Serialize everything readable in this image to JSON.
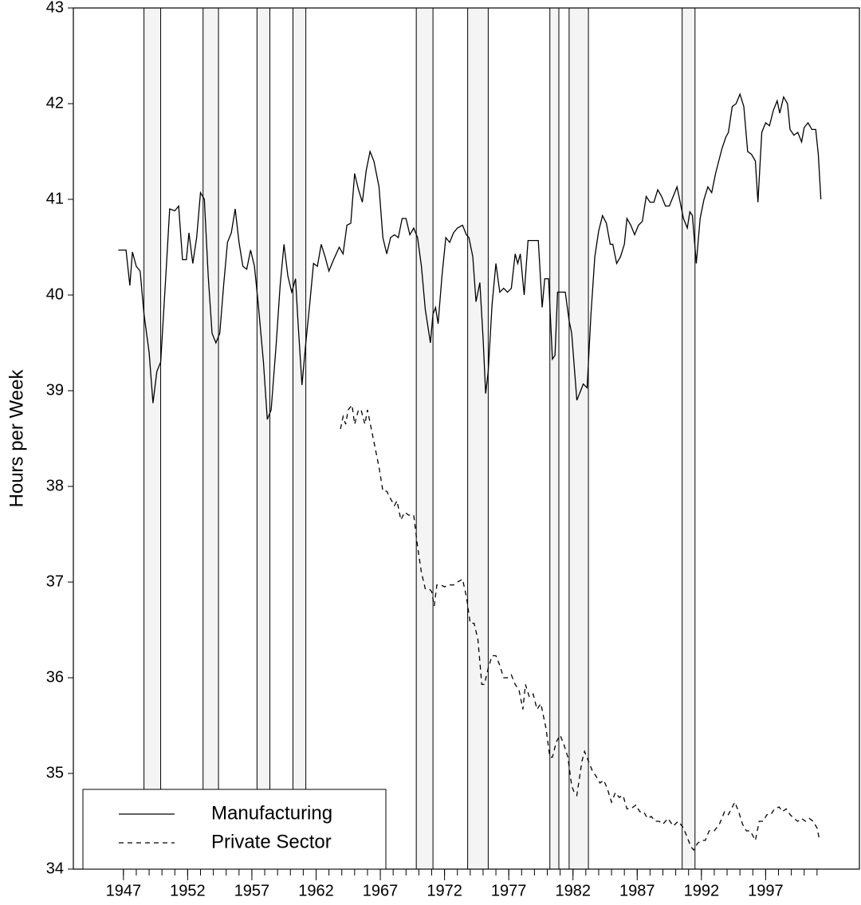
{
  "chart_data": {
    "type": "line",
    "ylabel": "Hours per Week",
    "xlim": [
      1943.1,
      2004.3
    ],
    "ylim": [
      34,
      43
    ],
    "yticks": [
      34,
      35,
      36,
      37,
      38,
      39,
      40,
      41,
      42,
      43
    ],
    "xticks": [
      1947,
      1952,
      1957,
      1962,
      1967,
      1972,
      1977,
      1982,
      1987,
      1992,
      1997
    ],
    "xminorticks": [
      1947,
      1948,
      1949,
      1950,
      1951,
      1952,
      1953,
      1954,
      1955,
      1956,
      1957,
      1958,
      1959,
      1960,
      1961,
      1962,
      1963,
      1964,
      1965,
      1966,
      1967,
      1968,
      1969,
      1970,
      1971,
      1972,
      1973,
      1974,
      1975,
      1976,
      1977,
      1978,
      1979,
      1980,
      1981,
      1982,
      1983,
      1984,
      1985,
      1986,
      1987,
      1988,
      1989,
      1990,
      1991,
      1992,
      1993,
      1994,
      1995,
      1996,
      1997,
      1998,
      1999,
      2000,
      2001
    ],
    "recessions": [
      [
        1948.6,
        1949.9
      ],
      [
        1953.2,
        1954.4
      ],
      [
        1957.4,
        1958.4
      ],
      [
        1960.2,
        1961.2
      ],
      [
        1969.8,
        1971.1
      ],
      [
        1973.8,
        1975.4
      ],
      [
        1980.2,
        1980.9
      ],
      [
        1981.7,
        1983.2
      ],
      [
        1990.5,
        1991.5
      ]
    ],
    "legend": "lower left",
    "series": [
      {
        "name": "Manufacturing",
        "color": "#000000",
        "dash": "solid",
        "x": [
          1946.6,
          1947.2,
          1947.5,
          1947.7,
          1948.0,
          1948.3,
          1948.6,
          1949.0,
          1949.3,
          1949.6,
          1949.9,
          1950.3,
          1950.6,
          1951.0,
          1951.3,
          1951.6,
          1951.9,
          1952.1,
          1952.4,
          1952.7,
          1953.0,
          1953.3,
          1953.6,
          1953.9,
          1954.2,
          1954.5,
          1954.8,
          1955.1,
          1955.4,
          1955.7,
          1956.0,
          1956.3,
          1956.6,
          1956.9,
          1957.2,
          1957.5,
          1957.9,
          1958.2,
          1958.5,
          1958.9,
          1959.2,
          1959.5,
          1959.8,
          1960.1,
          1960.4,
          1960.6,
          1960.9,
          1961.2,
          1961.5,
          1961.8,
          1962.1,
          1962.4,
          1962.7,
          1963.0,
          1963.3,
          1963.8,
          1964.1,
          1964.4,
          1964.7,
          1965.0,
          1965.3,
          1965.6,
          1965.9,
          1966.2,
          1966.5,
          1966.9,
          1967.2,
          1967.5,
          1967.8,
          1968.1,
          1968.4,
          1968.7,
          1969.0,
          1969.3,
          1969.6,
          1969.9,
          1970.2,
          1970.5,
          1970.9,
          1971.1,
          1971.3,
          1971.5,
          1971.8,
          1972.1,
          1972.4,
          1972.7,
          1973.0,
          1973.4,
          1973.7,
          1973.9,
          1974.2,
          1974.45,
          1974.75,
          1975.0,
          1975.2,
          1975.4,
          1975.7,
          1976.0,
          1976.3,
          1976.6,
          1976.9,
          1977.2,
          1977.5,
          1977.7,
          1977.9,
          1978.2,
          1978.5,
          1978.9,
          1979.3,
          1979.6,
          1979.8,
          1980.1,
          1980.4,
          1980.6,
          1980.8,
          1981.4,
          1981.7,
          1981.9,
          1982.3,
          1982.6,
          1982.8,
          1983.1,
          1983.4,
          1983.7,
          1984.0,
          1984.3,
          1984.6,
          1984.9,
          1985.1,
          1985.4,
          1985.7,
          1986.0,
          1986.2,
          1986.5,
          1986.8,
          1987.1,
          1987.4,
          1987.7,
          1988.0,
          1988.3,
          1988.6,
          1988.9,
          1989.2,
          1989.5,
          1989.8,
          1990.1,
          1990.3,
          1990.6,
          1990.9,
          1991.1,
          1991.3,
          1991.6,
          1991.9,
          1992.2,
          1992.5,
          1992.8,
          1993.1,
          1993.6,
          1993.9,
          1994.1,
          1994.4,
          1994.7,
          1995.0,
          1995.3,
          1995.6,
          1995.9,
          1996.2,
          1996.4,
          1996.7,
          1997.0,
          1997.3,
          1997.6,
          1997.9,
          1998.1,
          1998.4,
          1998.7,
          1998.9,
          1999.2,
          1999.5,
          1999.8,
          2000.0,
          2000.3,
          2000.6,
          2000.9,
          2001.1,
          2001.3
        ],
        "values": [
          40.47,
          40.47,
          40.1,
          40.45,
          40.3,
          40.25,
          39.8,
          39.4,
          38.87,
          39.2,
          39.3,
          40.2,
          40.9,
          40.88,
          40.93,
          40.37,
          40.37,
          40.65,
          40.33,
          40.6,
          41.07,
          41.0,
          40.2,
          39.6,
          39.5,
          39.6,
          40.1,
          40.55,
          40.65,
          40.9,
          40.55,
          40.3,
          40.27,
          40.47,
          40.3,
          39.9,
          39.3,
          38.7,
          38.8,
          39.5,
          40.1,
          40.53,
          40.2,
          40.03,
          40.17,
          39.7,
          39.06,
          39.5,
          39.9,
          40.33,
          40.3,
          40.53,
          40.4,
          40.25,
          40.35,
          40.5,
          40.43,
          40.73,
          40.75,
          41.27,
          41.1,
          40.97,
          41.3,
          41.5,
          41.4,
          41.13,
          40.6,
          40.43,
          40.6,
          40.63,
          40.6,
          40.8,
          40.8,
          40.63,
          40.7,
          40.6,
          40.3,
          39.85,
          39.5,
          39.8,
          39.87,
          39.7,
          40.2,
          40.6,
          40.55,
          40.65,
          40.7,
          40.73,
          40.63,
          40.6,
          40.4,
          39.93,
          40.13,
          39.55,
          38.97,
          39.2,
          39.9,
          40.33,
          40.03,
          40.07,
          40.03,
          40.07,
          40.43,
          40.33,
          40.43,
          40.0,
          40.57,
          40.57,
          40.57,
          39.87,
          40.17,
          40.17,
          39.33,
          39.37,
          40.03,
          40.03,
          39.73,
          39.6,
          38.9,
          39.0,
          39.07,
          39.03,
          39.8,
          40.4,
          40.67,
          40.83,
          40.75,
          40.53,
          40.53,
          40.33,
          40.4,
          40.53,
          40.8,
          40.73,
          40.63,
          40.73,
          40.77,
          41.03,
          40.97,
          40.97,
          41.1,
          41.03,
          40.93,
          40.93,
          41.03,
          41.13,
          41.0,
          40.8,
          40.7,
          40.87,
          40.83,
          40.33,
          40.8,
          41.0,
          41.13,
          41.07,
          41.27,
          41.53,
          41.65,
          41.7,
          41.97,
          42.0,
          42.1,
          41.97,
          41.5,
          41.47,
          41.4,
          40.97,
          41.7,
          41.8,
          41.77,
          41.93,
          42.03,
          41.9,
          42.07,
          42.0,
          41.73,
          41.67,
          41.7,
          41.6,
          41.75,
          41.8,
          41.73,
          41.73,
          41.47,
          41.0
        ]
      },
      {
        "name": "Private Sector",
        "color": "#000000",
        "dash": "dashed",
        "x": [
          1963.9,
          1964.1,
          1964.3,
          1964.5,
          1964.8,
          1965.0,
          1965.3,
          1965.5,
          1965.8,
          1966.0,
          1966.3,
          1966.6,
          1966.9,
          1967.2,
          1967.5,
          1967.8,
          1968.1,
          1968.3,
          1968.6,
          1968.9,
          1969.2,
          1969.6,
          1969.9,
          1970.2,
          1970.5,
          1970.8,
          1971.0,
          1971.2,
          1971.4,
          1971.7,
          1972.0,
          1972.3,
          1972.7,
          1973.0,
          1973.4,
          1973.7,
          1974.0,
          1974.3,
          1974.6,
          1974.9,
          1975.1,
          1975.4,
          1975.7,
          1976.0,
          1976.3,
          1976.6,
          1976.9,
          1977.2,
          1977.5,
          1977.8,
          1978.1,
          1978.3,
          1978.6,
          1978.9,
          1979.2,
          1979.5,
          1979.7,
          1979.9,
          1980.2,
          1980.4,
          1980.7,
          1981.0,
          1981.3,
          1981.6,
          1981.9,
          1982.1,
          1982.3,
          1982.5,
          1982.7,
          1982.9,
          1983.2,
          1983.5,
          1983.8,
          1984.1,
          1984.4,
          1984.7,
          1985.0,
          1985.3,
          1985.6,
          1985.9,
          1986.2,
          1986.5,
          1986.9,
          1987.2,
          1987.5,
          1987.8,
          1988.1,
          1988.4,
          1988.7,
          1989.0,
          1989.4,
          1989.8,
          1990.2,
          1990.6,
          1990.9,
          1991.2,
          1991.4,
          1991.7,
          1992.0,
          1992.3,
          1992.6,
          1993.0,
          1993.4,
          1993.8,
          1994.1,
          1994.6,
          1994.9,
          1995.2,
          1995.5,
          1995.8,
          1996.2,
          1996.5,
          1996.8,
          1997.1,
          1997.4,
          1997.7,
          1998.05,
          1998.3,
          1998.6,
          1998.9,
          1999.2,
          1999.5,
          1999.8,
          2000.1,
          2000.4,
          2000.7,
          2001.0,
          2001.2
        ],
        "values": [
          38.6,
          38.73,
          38.65,
          38.8,
          38.85,
          38.65,
          38.8,
          38.8,
          38.65,
          38.8,
          38.6,
          38.4,
          38.2,
          37.95,
          37.95,
          37.87,
          37.8,
          37.85,
          37.65,
          37.73,
          37.7,
          37.7,
          37.37,
          37.1,
          36.93,
          36.93,
          36.9,
          36.75,
          36.97,
          36.97,
          36.95,
          36.97,
          36.97,
          37.0,
          37.03,
          36.85,
          36.57,
          36.57,
          36.4,
          35.93,
          35.93,
          36.1,
          36.23,
          36.23,
          36.13,
          36.0,
          36.0,
          36.03,
          35.93,
          35.87,
          35.67,
          35.93,
          35.8,
          35.83,
          35.67,
          35.73,
          35.6,
          35.47,
          35.17,
          35.17,
          35.33,
          35.4,
          35.3,
          35.17,
          34.87,
          34.8,
          34.77,
          34.95,
          35.13,
          35.23,
          35.13,
          35.03,
          34.97,
          34.9,
          34.93,
          34.83,
          34.7,
          34.8,
          34.75,
          34.77,
          34.63,
          34.63,
          34.67,
          34.6,
          34.6,
          34.53,
          34.55,
          34.5,
          34.5,
          34.47,
          34.53,
          34.45,
          34.5,
          34.43,
          34.33,
          34.23,
          34.2,
          34.27,
          34.3,
          34.3,
          34.4,
          34.4,
          34.47,
          34.6,
          34.57,
          34.7,
          34.6,
          34.47,
          34.4,
          34.4,
          34.3,
          34.5,
          34.5,
          34.57,
          34.57,
          34.63,
          34.65,
          34.6,
          34.63,
          34.57,
          34.53,
          34.5,
          34.53,
          34.5,
          34.53,
          34.5,
          34.43,
          34.3
        ]
      }
    ]
  }
}
